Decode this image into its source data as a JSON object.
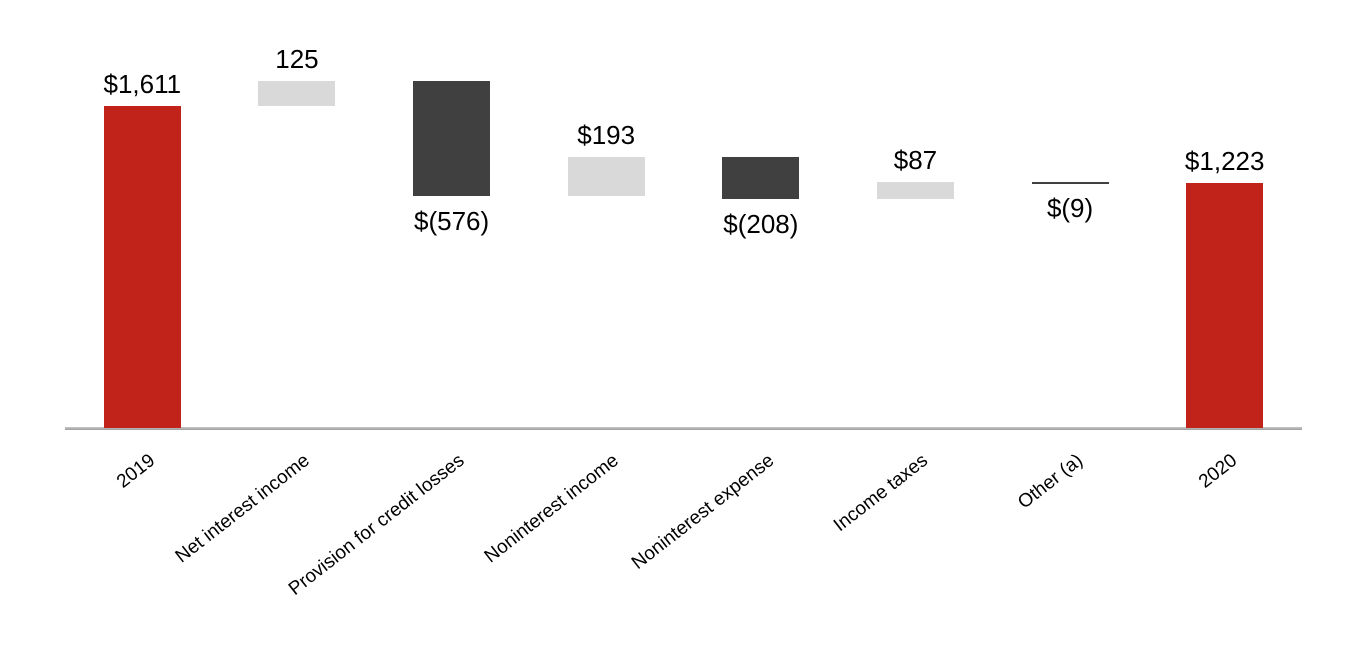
{
  "chart_data": {
    "type": "bar",
    "subtype": "waterfall",
    "categories": [
      "2019",
      "Net interest income",
      "Provision for credit losses",
      "Noninterest income",
      "Noninterest expense",
      "Income taxes",
      "Other (a)",
      "2020"
    ],
    "bars": [
      {
        "label": "2019",
        "value_label": "$1,611",
        "value": 1611,
        "kind": "total",
        "start": 0,
        "end": 1611,
        "label_position": "above"
      },
      {
        "label": "Net interest income",
        "value_label": "125",
        "value": 125,
        "kind": "increase",
        "start": 1611,
        "end": 1736,
        "label_position": "above"
      },
      {
        "label": "Provision for credit losses",
        "value_label": "$(576)",
        "value": -576,
        "kind": "decrease",
        "start": 1736,
        "end": 1160,
        "label_position": "below"
      },
      {
        "label": "Noninterest income",
        "value_label": "$193",
        "value": 193,
        "kind": "increase",
        "start": 1160,
        "end": 1353,
        "label_position": "above"
      },
      {
        "label": "Noninterest expense",
        "value_label": "$(208)",
        "value": -208,
        "kind": "decrease",
        "start": 1353,
        "end": 1145,
        "label_position": "below"
      },
      {
        "label": "Income taxes",
        "value_label": "$87",
        "value": 87,
        "kind": "increase",
        "start": 1145,
        "end": 1232,
        "label_position": "above"
      },
      {
        "label": "Other (a)",
        "value_label": "$(9)",
        "value": -9,
        "kind": "decrease",
        "start": 1232,
        "end": 1223,
        "label_position": "below"
      },
      {
        "label": "2020",
        "value_label": "$1,223",
        "value": 1223,
        "kind": "total",
        "start": 0,
        "end": 1223,
        "label_position": "above"
      }
    ],
    "ylim": [
      0,
      1800
    ],
    "legend": "none",
    "grid": "off",
    "colors": {
      "total": "#c1231a",
      "increase": "#d9d9d9",
      "decrease": "#404040",
      "axis_line": "#a6a6a6",
      "label_text": "#000000",
      "background": "#ffffff"
    }
  }
}
